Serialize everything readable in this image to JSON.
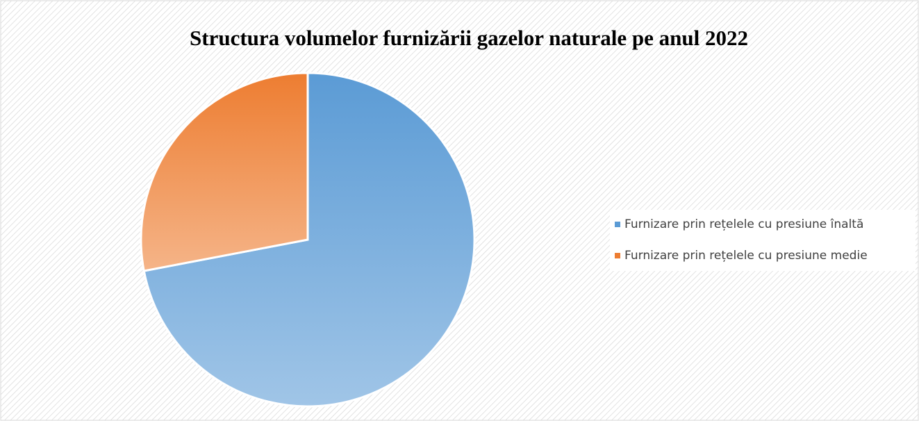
{
  "chart_data": {
    "type": "pie",
    "title": "Structura volumelor furnizării gazelor naturale pe anul 2022",
    "categories": [
      "Furnizare prin rețelele cu presiune înaltă",
      "Furnizare prin rețelele cu presiune medie"
    ],
    "values": [
      72,
      28
    ],
    "colors": [
      "#5b9bd5",
      "#ed7d31"
    ],
    "legend": "right"
  }
}
